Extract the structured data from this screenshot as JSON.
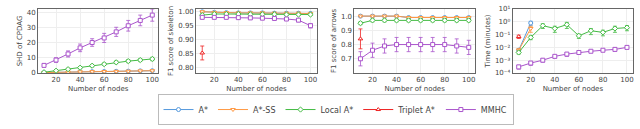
{
  "chart_data": [
    {
      "type": "line",
      "xlabel": "Number of nodes",
      "ylabel": "SHD of CPDAG",
      "x": [
        10,
        20,
        30,
        40,
        50,
        60,
        70,
        80,
        90,
        100
      ],
      "xlim": [
        5,
        105
      ],
      "xticks": [
        20,
        40,
        60,
        80,
        100
      ],
      "ylim": [
        0,
        42
      ],
      "yticks": [
        0,
        10,
        20,
        30,
        40
      ],
      "grid": true,
      "legend": "bottom",
      "series": [
        {
          "name": "A*",
          "color": "#5599dd",
          "marker": "circle",
          "values": [
            0.3,
            0.4,
            0.6,
            0.8,
            0.9,
            1.0,
            1.1,
            1.2,
            1.4,
            1.5
          ],
          "errors": [
            0.15,
            0.15,
            0.2,
            0.2,
            0.2,
            0.2,
            0.3,
            0.3,
            0.3,
            0.3
          ]
        },
        {
          "name": "A*-SS",
          "color": "#ff9944",
          "marker": "triangle-down",
          "values": [
            0.3,
            0.4,
            0.6,
            0.8,
            0.9,
            1.0,
            1.1,
            1.2,
            1.4,
            1.5
          ],
          "errors": [
            0.15,
            0.15,
            0.2,
            0.2,
            0.2,
            0.2,
            0.3,
            0.3,
            0.3,
            0.3
          ]
        },
        {
          "name": "Local A*",
          "color": "#44bb44",
          "marker": "diamond",
          "values": [
            0.5,
            1.5,
            2.5,
            3.5,
            4.8,
            5.8,
            7.0,
            7.8,
            8.5,
            9.2
          ],
          "errors": [
            0.3,
            0.5,
            0.6,
            0.7,
            0.8,
            0.8,
            0.9,
            1.0,
            1.0,
            1.1
          ]
        },
        {
          "name": "MMHC",
          "color": "#aa55cc",
          "marker": "square",
          "values": [
            5.0,
            8.5,
            12.5,
            16.5,
            20.0,
            23.0,
            27.0,
            31.0,
            34.5,
            38.0
          ],
          "errors": [
            1.0,
            1.5,
            2.0,
            2.5,
            2.5,
            3.0,
            3.0,
            3.5,
            3.5,
            4.0
          ]
        }
      ]
    },
    {
      "type": "line",
      "xlabel": "Number of nodes",
      "ylabel": "F1 score of skeleton",
      "x": [
        10,
        20,
        30,
        40,
        50,
        60,
        70,
        80,
        90,
        100
      ],
      "xlim": [
        5,
        105
      ],
      "xticks": [
        20,
        40,
        60,
        80,
        100
      ],
      "ylim": [
        0.78,
        1.01
      ],
      "yticks": [
        {
          "value": 0.8,
          "label": "0.80"
        },
        0.85,
        {
          "value": 0.9,
          "label": "0.90"
        },
        0.95,
        {
          "value": 1,
          "label": "1.00"
        }
      ],
      "grid": true,
      "legend": "bottom",
      "series": [
        {
          "name": "A*",
          "color": "#5599dd",
          "marker": "circle",
          "values": [
            1.0,
            0.998,
            0.997,
            0.996,
            0.996,
            0.996,
            0.995,
            0.995,
            0.995,
            0.994
          ],
          "errors": [
            0.002,
            0.002,
            0.002,
            0.002,
            0.002,
            0.002,
            0.002,
            0.002,
            0.002,
            0.002
          ]
        },
        {
          "name": "A*-SS",
          "color": "#ff9944",
          "marker": "triangle-down",
          "values": [
            1.0,
            0.998,
            0.997,
            0.996,
            0.996,
            0.996,
            0.995,
            0.995,
            0.995,
            0.994
          ],
          "errors": [
            0.002,
            0.002,
            0.002,
            0.002,
            0.002,
            0.002,
            0.002,
            0.002,
            0.002,
            0.002
          ]
        },
        {
          "name": "Local A*",
          "color": "#44bb44",
          "marker": "diamond",
          "values": [
            0.988,
            0.992,
            0.992,
            0.992,
            0.991,
            0.991,
            0.991,
            0.99,
            0.99,
            0.99
          ],
          "errors": [
            0.004,
            0.003,
            0.003,
            0.003,
            0.003,
            0.003,
            0.003,
            0.003,
            0.003,
            0.003
          ]
        },
        {
          "name": "Triplet A*",
          "color": "#ee2222",
          "marker": "triangle-up",
          "values": [
            0.852,
            null,
            null,
            null,
            null,
            null,
            null,
            null,
            null,
            null
          ],
          "errors": [
            0.025,
            null,
            null,
            null,
            null,
            null,
            null,
            null,
            null,
            null
          ]
        },
        {
          "name": "MMHC",
          "color": "#aa55cc",
          "marker": "square",
          "values": [
            0.98,
            0.98,
            0.98,
            0.979,
            0.978,
            0.977,
            0.976,
            0.974,
            0.97,
            0.95
          ],
          "errors": [
            0.004,
            0.004,
            0.004,
            0.004,
            0.004,
            0.004,
            0.004,
            0.005,
            0.006,
            0.008
          ]
        }
      ]
    },
    {
      "type": "line",
      "xlabel": "Number of nodes",
      "ylabel": "F1 score of arrows",
      "x": [
        10,
        20,
        30,
        40,
        50,
        60,
        70,
        80,
        90,
        100
      ],
      "xlim": [
        5,
        105
      ],
      "xticks": [
        20,
        40,
        60,
        80,
        100
      ],
      "ylim": [
        0.6,
        1.05
      ],
      "yticks": [
        0.7,
        0.8,
        0.9,
        {
          "value": 1,
          "label": "1.0"
        }
      ],
      "grid": true,
      "legend": "bottom",
      "series": [
        {
          "name": "A*",
          "color": "#5599dd",
          "marker": "circle",
          "values": [
            1.0,
            1.0,
            1.0,
            1.0,
            0.99,
            0.99,
            0.99,
            0.99,
            0.99,
            0.99
          ],
          "errors": [
            0.005,
            0.005,
            0.005,
            0.005,
            0.005,
            0.005,
            0.005,
            0.005,
            0.005,
            0.005
          ]
        },
        {
          "name": "A*-SS",
          "color": "#ff9944",
          "marker": "triangle-down",
          "values": [
            1.0,
            1.0,
            1.0,
            1.0,
            0.99,
            0.99,
            0.99,
            0.99,
            0.99,
            0.99
          ],
          "errors": [
            0.005,
            0.005,
            0.005,
            0.005,
            0.005,
            0.005,
            0.005,
            0.005,
            0.005,
            0.005
          ]
        },
        {
          "name": "Local A*",
          "color": "#44bb44",
          "marker": "diamond",
          "values": [
            0.95,
            0.97,
            0.97,
            0.97,
            0.97,
            0.97,
            0.97,
            0.97,
            0.97,
            0.97
          ],
          "errors": [
            0.01,
            0.01,
            0.01,
            0.01,
            0.01,
            0.01,
            0.01,
            0.01,
            0.01,
            0.01
          ]
        },
        {
          "name": "Triplet A*",
          "color": "#ee2222",
          "marker": "triangle-up",
          "values": [
            0.84,
            null,
            null,
            null,
            null,
            null,
            null,
            null,
            null,
            null
          ],
          "errors": [
            0.07,
            null,
            null,
            null,
            null,
            null,
            null,
            null,
            null,
            null
          ]
        },
        {
          "name": "MMHC",
          "color": "#aa55cc",
          "marker": "square",
          "values": [
            0.7,
            0.76,
            0.79,
            0.8,
            0.8,
            0.8,
            0.8,
            0.8,
            0.79,
            0.78
          ],
          "errors": [
            0.05,
            0.05,
            0.05,
            0.05,
            0.05,
            0.05,
            0.05,
            0.05,
            0.05,
            0.05
          ]
        }
      ]
    },
    {
      "type": "line",
      "xlabel": "Number of nodes",
      "ylabel": "Time (minutes)",
      "x": [
        10,
        20,
        30,
        40,
        50,
        60,
        70,
        80,
        90,
        100
      ],
      "xlim": [
        5,
        105
      ],
      "xticks": [
        20,
        40,
        60,
        80,
        100
      ],
      "log": "y",
      "ylim": [
        0.0001,
        10
      ],
      "yticks": [
        {
          "value": 0.0001,
          "label": "10⁻⁴"
        },
        {
          "value": 0.001,
          "label": "10⁻³"
        },
        {
          "value": 0.01,
          "label": "10⁻²"
        },
        {
          "value": 0.1,
          "label": "10⁻¹"
        },
        {
          "value": 1,
          "label": "10⁰"
        },
        {
          "value": 10,
          "label": "10¹"
        }
      ],
      "grid": true,
      "legend": "bottom",
      "series": [
        {
          "name": "A*",
          "color": "#5599dd",
          "marker": "circle",
          "values": [
            0.006,
            0.8,
            null,
            null,
            null,
            null,
            null,
            null,
            null,
            null
          ],
          "errors": [
            0.002,
            0.3,
            null,
            null,
            null,
            null,
            null,
            null,
            null,
            null
          ]
        },
        {
          "name": "A*-SS",
          "color": "#ff9944",
          "marker": "triangle-down",
          "values": [
            0.006,
            0.3,
            null,
            null,
            null,
            null,
            null,
            null,
            null,
            null
          ],
          "errors": [
            0.002,
            0.15,
            null,
            null,
            null,
            null,
            null,
            null,
            null,
            null
          ]
        },
        {
          "name": "Local A*",
          "color": "#44bb44",
          "marker": "diamond",
          "values": [
            0.004,
            0.06,
            0.5,
            0.3,
            0.6,
            0.08,
            0.2,
            0.15,
            0.3,
            0.35
          ],
          "errors": [
            0.001,
            0.02,
            0.2,
            0.15,
            0.3,
            0.03,
            0.1,
            0.07,
            0.15,
            0.15
          ]
        },
        {
          "name": "Triplet A*",
          "color": "#ee2222",
          "marker": "triangle-up",
          "values": [
            0.07,
            null,
            null,
            null,
            null,
            null,
            null,
            null,
            null,
            null
          ],
          "errors": [
            0.02,
            null,
            null,
            null,
            null,
            null,
            null,
            null,
            null,
            null
          ]
        },
        {
          "name": "MMHC",
          "color": "#aa55cc",
          "marker": "square",
          "values": [
            0.0003,
            0.0006,
            0.001,
            0.002,
            0.003,
            0.004,
            0.005,
            0.006,
            0.007,
            0.01
          ],
          "errors": [
            0.0001,
            0.0002,
            0.0003,
            0.0005,
            0.001,
            0.001,
            0.001,
            0.001,
            0.002,
            0.002
          ]
        }
      ]
    }
  ]
}
